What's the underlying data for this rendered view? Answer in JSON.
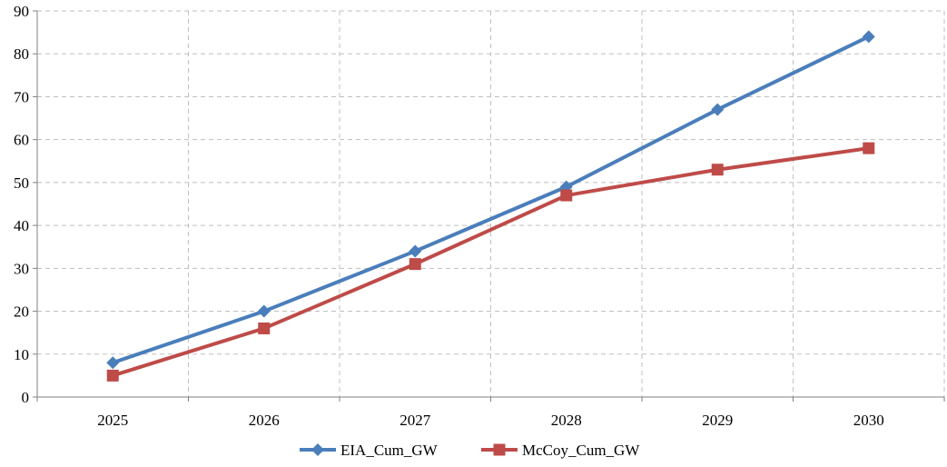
{
  "chart_data": {
    "type": "line",
    "title": "",
    "xlabel": "",
    "ylabel": "",
    "categories": [
      "2025",
      "2026",
      "2027",
      "2028",
      "2029",
      "2030"
    ],
    "ylim": [
      0,
      90
    ],
    "yticks": [
      0,
      10,
      20,
      30,
      40,
      50,
      60,
      70,
      80,
      90
    ],
    "grid": true,
    "legend_position": "bottom",
    "series": [
      {
        "name": "EIA_Cum_GW",
        "values": [
          8,
          20,
          34,
          49,
          67,
          84
        ],
        "color": "#4A7EBB",
        "marker": "diamond"
      },
      {
        "name": "McCoy_Cum_GW",
        "values": [
          5,
          16,
          31,
          47,
          53,
          58
        ],
        "color": "#BE4B48",
        "marker": "square"
      }
    ]
  }
}
